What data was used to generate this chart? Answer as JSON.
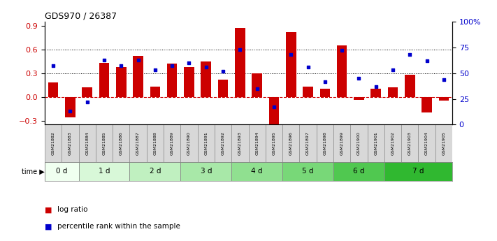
{
  "title": "GDS970 / 26387",
  "samples": [
    "GSM21882",
    "GSM21883",
    "GSM21884",
    "GSM21885",
    "GSM21886",
    "GSM21887",
    "GSM21888",
    "GSM21889",
    "GSM21890",
    "GSM21891",
    "GSM21892",
    "GSM21893",
    "GSM21894",
    "GSM21895",
    "GSM21896",
    "GSM21897",
    "GSM21898",
    "GSM21899",
    "GSM21900",
    "GSM21901",
    "GSM21902",
    "GSM21903",
    "GSM21904",
    "GSM21905"
  ],
  "log_ratio": [
    0.18,
    -0.26,
    0.12,
    0.43,
    0.38,
    0.52,
    0.13,
    0.42,
    0.38,
    0.45,
    0.22,
    0.87,
    0.3,
    -0.4,
    0.82,
    0.13,
    0.1,
    0.65,
    -0.04,
    0.1,
    0.12,
    0.28,
    -0.2,
    -0.05
  ],
  "percentile": [
    0.57,
    0.13,
    0.22,
    0.63,
    0.57,
    0.63,
    0.53,
    0.57,
    0.6,
    0.56,
    0.52,
    0.73,
    0.35,
    0.17,
    0.68,
    0.56,
    0.42,
    0.72,
    0.45,
    0.37,
    0.53,
    0.68,
    0.62,
    0.44
  ],
  "time_groups": [
    {
      "label": "0 d",
      "start": 0,
      "end": 2,
      "color": "#f0fff0"
    },
    {
      "label": "1 d",
      "start": 2,
      "end": 5,
      "color": "#d8f8d8"
    },
    {
      "label": "2 d",
      "start": 5,
      "end": 8,
      "color": "#c0f0c0"
    },
    {
      "label": "3 d",
      "start": 8,
      "end": 11,
      "color": "#a8e8a8"
    },
    {
      "label": "4 d",
      "start": 11,
      "end": 14,
      "color": "#90e090"
    },
    {
      "label": "5 d",
      "start": 14,
      "end": 17,
      "color": "#78d878"
    },
    {
      "label": "6 d",
      "start": 17,
      "end": 20,
      "color": "#50c850"
    },
    {
      "label": "7 d",
      "start": 20,
      "end": 24,
      "color": "#30b830"
    }
  ],
  "ylim_left": [
    -0.35,
    0.95
  ],
  "ylim_right": [
    0,
    100
  ],
  "yticks_left": [
    -0.3,
    0.0,
    0.3,
    0.6,
    0.9
  ],
  "yticks_right": [
    0,
    25,
    50,
    75,
    100
  ],
  "bar_color": "#cc0000",
  "dot_color": "#0000cc",
  "hline_y": 0.0,
  "dotted_lines": [
    0.3,
    0.6
  ],
  "background_color": "#ffffff"
}
